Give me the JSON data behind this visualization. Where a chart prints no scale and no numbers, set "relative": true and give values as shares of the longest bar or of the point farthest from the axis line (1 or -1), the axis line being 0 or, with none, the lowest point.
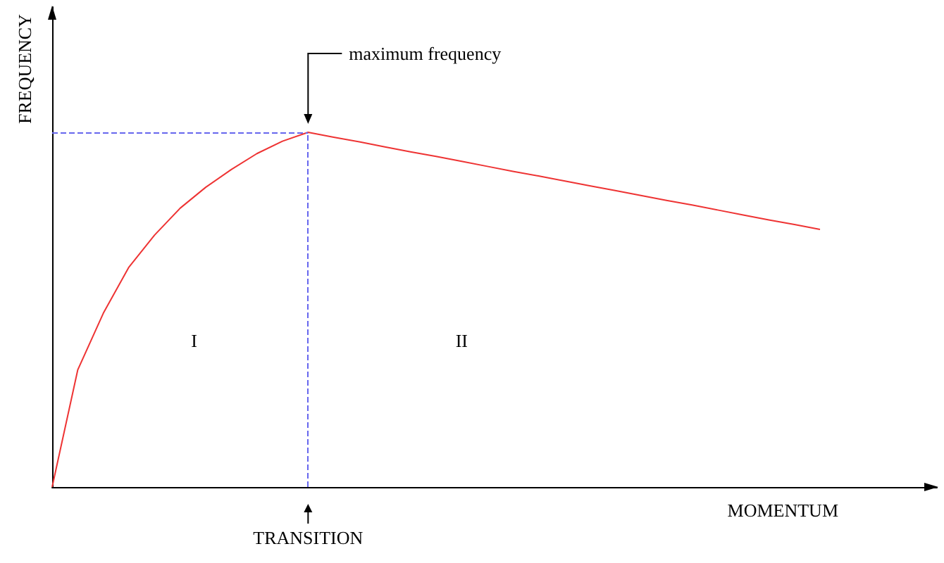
{
  "chart_data": {
    "type": "line",
    "relative": true,
    "xlabel": "MOMENTUM",
    "ylabel": "FREQUENCY",
    "categories": [
      null,
      null,
      null,
      null,
      null,
      null,
      null,
      null,
      null,
      null,
      null,
      null,
      null,
      null,
      null,
      null,
      null,
      null,
      null,
      null,
      null,
      null,
      null,
      null,
      null,
      null,
      null,
      null,
      null,
      null,
      null
    ],
    "series": [
      {
        "color": "#ee3333",
        "values": [
          0,
          0.33,
          0.49,
          0.62,
          0.71,
          0.786,
          0.845,
          0.895,
          0.94,
          0.975,
          1,
          0.986,
          0.973,
          0.959,
          0.945,
          0.932,
          0.918,
          0.904,
          0.89,
          0.877,
          0.863,
          0.849,
          0.836,
          0.822,
          0.808,
          0.795,
          0.781,
          0.767,
          0.753,
          0.74,
          0.726
        ]
      }
    ],
    "tick_labels": false,
    "grid": false,
    "marker": "none",
    "line_style": "solid",
    "ref_lines": [
      {
        "axis": "y",
        "value": 1,
        "color": "#6666ee",
        "line_style": "dashed"
      }
    ],
    "annotations": [
      "maximum frequency",
      "TRANSITION",
      "I",
      "II"
    ]
  }
}
